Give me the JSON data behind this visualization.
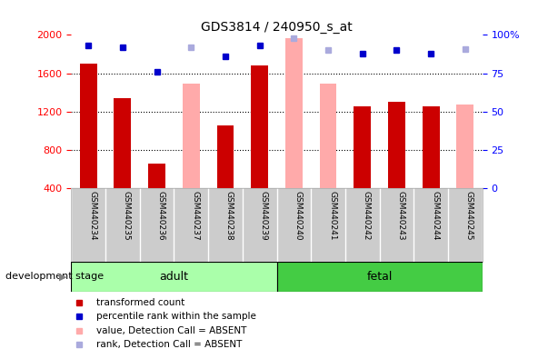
{
  "title": "GDS3814 / 240950_s_at",
  "samples": [
    "GSM440234",
    "GSM440235",
    "GSM440236",
    "GSM440237",
    "GSM440238",
    "GSM440239",
    "GSM440240",
    "GSM440241",
    "GSM440242",
    "GSM440243",
    "GSM440244",
    "GSM440245"
  ],
  "transformed_count": [
    1700,
    1340,
    660,
    null,
    1060,
    1680,
    null,
    null,
    1260,
    1300,
    1260,
    null
  ],
  "absent_value": [
    null,
    null,
    null,
    1490,
    null,
    null,
    1970,
    1490,
    null,
    null,
    null,
    1270
  ],
  "percentile_rank": [
    93,
    92,
    76,
    null,
    86,
    93,
    null,
    null,
    88,
    90,
    88,
    null
  ],
  "absent_rank": [
    null,
    null,
    null,
    92,
    null,
    null,
    98,
    90,
    null,
    null,
    null,
    91
  ],
  "groups": {
    "adult": [
      0,
      1,
      2,
      3,
      4,
      5
    ],
    "fetal": [
      6,
      7,
      8,
      9,
      10,
      11
    ]
  },
  "ylim_left": [
    400,
    2000
  ],
  "ylim_right": [
    0,
    100
  ],
  "yticks_left": [
    400,
    800,
    1200,
    1600,
    2000
  ],
  "yticks_right": [
    0,
    25,
    50,
    75,
    100
  ],
  "bar_color_present": "#cc0000",
  "bar_color_absent": "#ffaaaa",
  "dot_color_present": "#0000cc",
  "dot_color_absent": "#aaaadd",
  "adult_color": "#aaffaa",
  "fetal_color": "#44cc44",
  "tick_area_color": "#cccccc",
  "legend_items": [
    {
      "color": "#cc0000",
      "label": "transformed count"
    },
    {
      "color": "#0000cc",
      "label": "percentile rank within the sample"
    },
    {
      "color": "#ffaaaa",
      "label": "value, Detection Call = ABSENT"
    },
    {
      "color": "#aaaadd",
      "label": "rank, Detection Call = ABSENT"
    }
  ]
}
